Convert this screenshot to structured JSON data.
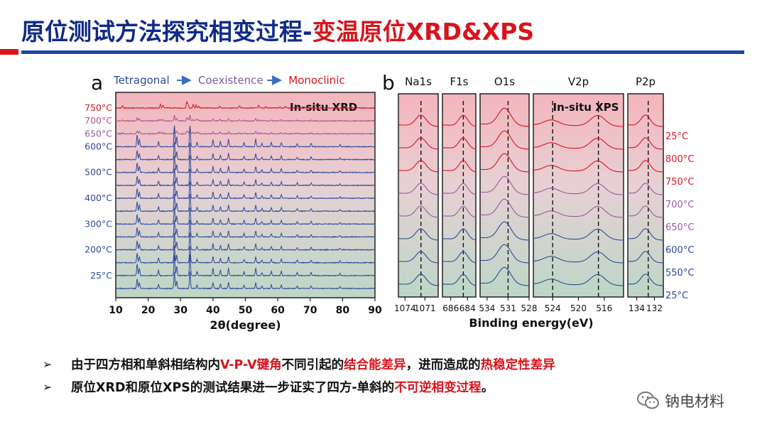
{
  "slide": {
    "title_part1": "原位测试方法探究相变过程-",
    "title_part2": "变温原位XRD&XPS",
    "bullets": [
      {
        "segments": [
          {
            "text": "由于四方相和单斜相结构内",
            "highlight": false
          },
          {
            "text": "V-P-V键角",
            "highlight": true
          },
          {
            "text": "不同引起的",
            "highlight": false
          },
          {
            "text": "结合能差异",
            "highlight": true
          },
          {
            "text": "，进而造成的",
            "highlight": false
          },
          {
            "text": "热稳定性差异",
            "highlight": true
          }
        ]
      },
      {
        "segments": [
          {
            "text": "原位XRD和原位XPS的测试结果进一步证实了四方-单斜的",
            "highlight": false
          },
          {
            "text": "不可逆相变过程",
            "highlight": true
          },
          {
            "text": "。",
            "highlight": false
          }
        ]
      }
    ],
    "watermark": "钠电材料",
    "colors": {
      "title_blue": "#0f2a8a",
      "highlight_red": "#d8141c",
      "rule_blue": "#1d47a8"
    }
  },
  "chart_data": [
    {
      "panel_label": "a",
      "type": "line",
      "annotation": "In-situ XRD",
      "header": [
        {
          "text": "Tetragonal",
          "color": "#2b4a9c"
        },
        {
          "text": "Coexistence",
          "color": "#7a5aa0"
        },
        {
          "text": "Monoclinic",
          "color": "#d8141c"
        }
      ],
      "xlabel": "2θ(degree)",
      "xlim": [
        10,
        90
      ],
      "xticks": [
        10,
        20,
        30,
        40,
        50,
        60,
        70,
        80,
        90
      ],
      "yaxis_ticks": false,
      "background_gradient": [
        "#f4b5bc",
        "#bcd7c6"
      ],
      "series": [
        {
          "label": "750°C",
          "color": "#d8141c",
          "phase": "monoclinic"
        },
        {
          "label": "700°C",
          "color": "#b4508a",
          "phase": "coexistence"
        },
        {
          "label": "650°C",
          "color": "#9a58a0",
          "phase": "coexistence"
        },
        {
          "label": "600°C",
          "color": "#2b4a9c",
          "phase": "tetragonal"
        },
        {
          "label": "",
          "color": "#2b4a9c",
          "phase": "tetragonal"
        },
        {
          "label": "500°C",
          "color": "#2b4a9c",
          "phase": "tetragonal"
        },
        {
          "label": "",
          "color": "#2b4a9c",
          "phase": "tetragonal"
        },
        {
          "label": "400°C",
          "color": "#2b4a9c",
          "phase": "tetragonal"
        },
        {
          "label": "",
          "color": "#2b4a9c",
          "phase": "tetragonal"
        },
        {
          "label": "300°C",
          "color": "#2b4a9c",
          "phase": "tetragonal"
        },
        {
          "label": "",
          "color": "#2b4a9c",
          "phase": "tetragonal"
        },
        {
          "label": "200°C",
          "color": "#2b4a9c",
          "phase": "tetragonal"
        },
        {
          "label": "",
          "color": "#2b4a9c",
          "phase": "tetragonal"
        },
        {
          "label": "25°C",
          "color": "#2b4a9c",
          "phase": "tetragonal"
        },
        {
          "label": "",
          "color": "#2b4a9c",
          "phase": "tetragonal"
        }
      ],
      "peaks_deg": {
        "tetragonal": [
          [
            16.6,
            0.55
          ],
          [
            17.3,
            0.35
          ],
          [
            23.2,
            0.25
          ],
          [
            28.1,
            1.0
          ],
          [
            28.8,
            0.45
          ],
          [
            32.9,
            1.0
          ],
          [
            35.1,
            0.2
          ],
          [
            40.0,
            0.35
          ],
          [
            42.3,
            0.25
          ],
          [
            44.8,
            0.35
          ],
          [
            49.6,
            0.2
          ],
          [
            53.2,
            0.35
          ],
          [
            55.1,
            0.15
          ],
          [
            58.0,
            0.2
          ],
          [
            61.1,
            0.2
          ],
          [
            66.0,
            0.15
          ],
          [
            70.3,
            0.15
          ],
          [
            79.2,
            0.1
          ]
        ],
        "monoclinic": [
          [
            12.1,
            0.25
          ],
          [
            23.8,
            0.4
          ],
          [
            24.6,
            0.3
          ],
          [
            31.9,
            0.75
          ],
          [
            32.3,
            0.5
          ],
          [
            33.9,
            0.4
          ],
          [
            34.8,
            0.35
          ],
          [
            35.6,
            0.25
          ],
          [
            42.1,
            0.2
          ],
          [
            48.2,
            0.25
          ],
          [
            54.1,
            0.3
          ],
          [
            56.3,
            0.15
          ],
          [
            60.6,
            0.15
          ],
          [
            62.4,
            0.2
          ],
          [
            65.3,
            0.1
          ]
        ]
      }
    },
    {
      "panel_label": "b",
      "type": "line",
      "annotation": "In-situ XPS",
      "xlabel": "Binding energy(eV)",
      "background_gradient": [
        "#f4b5bc",
        "#bcd7c6"
      ],
      "subpanels": [
        {
          "name": "Na1s",
          "xlim": [
            1075,
            1069
          ],
          "xticks": [
            1074,
            1071
          ],
          "peak": 1071.6,
          "ref": 1071.6
        },
        {
          "name": "F1s",
          "xlim": [
            687,
            683
          ],
          "xticks": [
            686,
            684
          ],
          "peak": 684.5,
          "ref": 684.5
        },
        {
          "name": "O1s",
          "xlim": [
            535,
            528
          ],
          "xticks": [
            534,
            531,
            528
          ],
          "peak": 531.5,
          "ref": 531.0
        },
        {
          "name": "V2p",
          "xlim": [
            527,
            513
          ],
          "xticks": [
            524,
            520,
            516
          ],
          "peak": 517.0,
          "peak2": 524.2,
          "ref": 524.0,
          "ref2": 516.9
        },
        {
          "name": "P2p",
          "xlim": [
            135,
            131
          ],
          "xticks": [
            134,
            132
          ],
          "peak": 133.0,
          "ref": 132.7
        }
      ],
      "series": [
        {
          "label": "25°C",
          "color": "#d8141c"
        },
        {
          "label": "800°C",
          "color": "#d8141c"
        },
        {
          "label": "750°C",
          "color": "#d8141c"
        },
        {
          "label": "700°C",
          "color": "#9a58a0"
        },
        {
          "label": "650°C",
          "color": "#9a58a0"
        },
        {
          "label": "600°C",
          "color": "#2b4a9c"
        },
        {
          "label": "550°C",
          "color": "#2b4a9c"
        },
        {
          "label": "25°C",
          "color": "#2b4a9c"
        }
      ]
    }
  ]
}
